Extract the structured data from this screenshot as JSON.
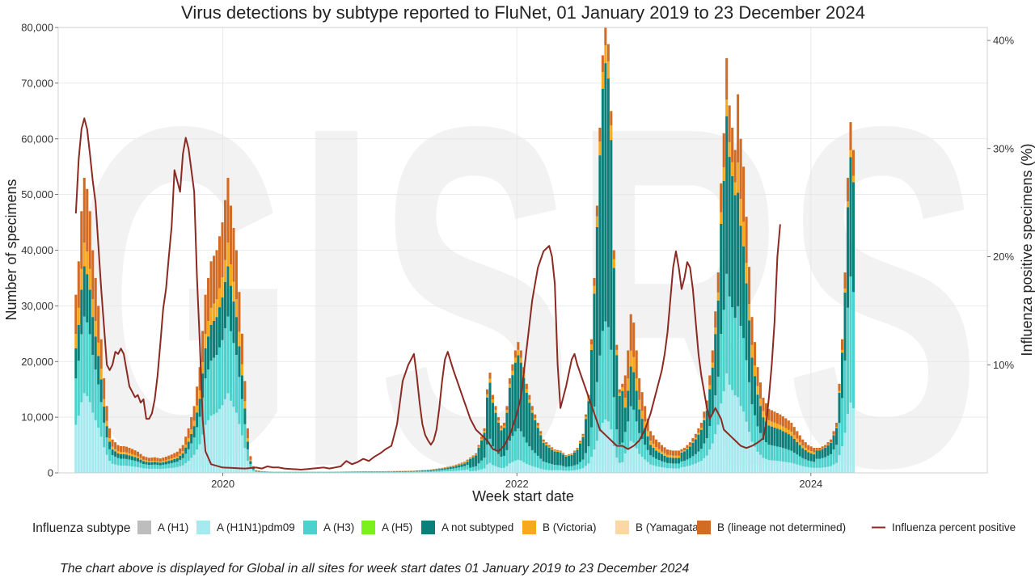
{
  "colors": {
    "A (H1)": "#bdbdbd",
    "A (H1N1)pdm09": "#a6eaf0",
    "A (H3)": "#4dd1cc",
    "A (H5)": "#7cf01c",
    "A not subtyped": "#0b7f7a",
    "B (Victoria)": "#f7a81b",
    "B (Yamagata)": "#f9d8a6",
    "B (lineage not determined)": "#d36b23",
    "Influenza percent positive": "#8b2a22",
    "watermark": "#f2f2f2",
    "grid": "#e4e4e4"
  },
  "chart_data": {
    "type": "bar",
    "stacked": true,
    "title": "Virus detections by subtype reported to FluNet, 01 January 2019 to 23 December 2024",
    "xlabel": "Week start date",
    "ylabel": "Number of specimens",
    "y2label": "Influenza positive specimens (%)",
    "watermark": "GISRS",
    "x_start": 2019.0,
    "x_step_weeks": 1,
    "xlim": [
      2018.88,
      2025.2
    ],
    "ylim": [
      0,
      80000
    ],
    "y2lim": [
      0,
      41.2
    ],
    "x_ticks": [
      {
        "value": 2020,
        "label": "2020"
      },
      {
        "value": 2022,
        "label": "2022"
      },
      {
        "value": 2024,
        "label": "2024"
      }
    ],
    "y_ticks": [
      {
        "value": 0,
        "label": "0"
      },
      {
        "value": 10000,
        "label": "10,000"
      },
      {
        "value": 20000,
        "label": "20,000"
      },
      {
        "value": 30000,
        "label": "30,000"
      },
      {
        "value": 40000,
        "label": "40,000"
      },
      {
        "value": 50000,
        "label": "50,000"
      },
      {
        "value": 60000,
        "label": "60,000"
      },
      {
        "value": 70000,
        "label": "70,000"
      },
      {
        "value": 80000,
        "label": "80,000"
      }
    ],
    "y2_ticks": [
      {
        "value": 10,
        "label": "10%"
      },
      {
        "value": 20,
        "label": "20%"
      },
      {
        "value": 30,
        "label": "30%"
      },
      {
        "value": 40,
        "label": "40%"
      }
    ],
    "legend_title": "Influenza subtype",
    "legend_position": "bottom",
    "legend": [
      {
        "name": "A (H1)",
        "kind": "box"
      },
      {
        "name": "A (H1N1)pdm09",
        "kind": "box"
      },
      {
        "name": "A (H3)",
        "kind": "box"
      },
      {
        "name": "A (H5)",
        "kind": "box"
      },
      {
        "name": "A not subtyped",
        "kind": "box"
      },
      {
        "name": "B (Victoria)",
        "kind": "box"
      },
      {
        "name": "B (Yamagata)",
        "kind": "box"
      },
      {
        "name": "B (lineage not determined)",
        "kind": "box"
      },
      {
        "name": "Influenza percent positive",
        "kind": "line"
      }
    ],
    "total_keypoints": [
      [
        0,
        32000
      ],
      [
        1,
        38000
      ],
      [
        2,
        47000
      ],
      [
        3,
        53000
      ],
      [
        4,
        51000
      ],
      [
        5,
        47000
      ],
      [
        6,
        40000
      ],
      [
        7,
        35000
      ],
      [
        8,
        30000
      ],
      [
        9,
        24000
      ],
      [
        10,
        17000
      ],
      [
        11,
        12000
      ],
      [
        12,
        8000
      ],
      [
        13,
        6000
      ],
      [
        14,
        5500
      ],
      [
        15,
        5000
      ],
      [
        16,
        4800
      ],
      [
        17,
        4800
      ],
      [
        18,
        4700
      ],
      [
        19,
        4500
      ],
      [
        20,
        4300
      ],
      [
        22,
        3800
      ],
      [
        24,
        3000
      ],
      [
        26,
        2700
      ],
      [
        28,
        2800
      ],
      [
        30,
        2600
      ],
      [
        32,
        2900
      ],
      [
        34,
        3300
      ],
      [
        36,
        3800
      ],
      [
        38,
        5000
      ],
      [
        40,
        8000
      ],
      [
        42,
        12000
      ],
      [
        44,
        19000
      ],
      [
        46,
        32000
      ],
      [
        48,
        38000
      ],
      [
        50,
        40000
      ],
      [
        52,
        45000
      ],
      [
        54,
        53000
      ],
      [
        55,
        48000
      ],
      [
        57,
        40000
      ],
      [
        59,
        25000
      ],
      [
        61,
        8000
      ],
      [
        62,
        3000
      ],
      [
        63,
        1200
      ],
      [
        64,
        500
      ],
      [
        66,
        300
      ],
      [
        70,
        200
      ],
      [
        80,
        200
      ],
      [
        90,
        200
      ],
      [
        100,
        250
      ],
      [
        110,
        300
      ],
      [
        120,
        400
      ],
      [
        126,
        600
      ],
      [
        130,
        900
      ],
      [
        134,
        1300
      ],
      [
        138,
        2000
      ],
      [
        142,
        3500
      ],
      [
        145,
        8000
      ],
      [
        146,
        15000
      ],
      [
        147,
        18000
      ],
      [
        148,
        14000
      ],
      [
        150,
        10000
      ],
      [
        151,
        8500
      ],
      [
        152,
        9000
      ],
      [
        153,
        12000
      ],
      [
        154,
        17000
      ],
      [
        156,
        22000
      ],
      [
        157,
        23500
      ],
      [
        158,
        22000
      ],
      [
        160,
        16000
      ],
      [
        162,
        12000
      ],
      [
        164,
        9000
      ],
      [
        166,
        6000
      ],
      [
        168,
        5000
      ],
      [
        170,
        4200
      ],
      [
        172,
        4000
      ],
      [
        174,
        3200
      ],
      [
        176,
        3500
      ],
      [
        178,
        4500
      ],
      [
        180,
        7000
      ],
      [
        182,
        14000
      ],
      [
        183,
        24000
      ],
      [
        184,
        35000
      ],
      [
        185,
        48000
      ],
      [
        186,
        62000
      ],
      [
        187,
        75000
      ],
      [
        188,
        80000
      ],
      [
        189,
        77000
      ],
      [
        190,
        65000
      ],
      [
        191,
        40000
      ],
      [
        192,
        23000
      ],
      [
        193,
        15000
      ],
      [
        194,
        16000
      ],
      [
        195,
        17500
      ],
      [
        196,
        22000
      ],
      [
        197,
        28500
      ],
      [
        198,
        27000
      ],
      [
        199,
        22000
      ],
      [
        200,
        17000
      ],
      [
        202,
        12000
      ],
      [
        204,
        7500
      ],
      [
        206,
        6000
      ],
      [
        208,
        5000
      ],
      [
        210,
        4200
      ],
      [
        212,
        4000
      ],
      [
        214,
        4000
      ],
      [
        216,
        4500
      ],
      [
        218,
        5500
      ],
      [
        220,
        7000
      ],
      [
        222,
        9000
      ],
      [
        224,
        13000
      ],
      [
        226,
        22000
      ],
      [
        228,
        36000
      ],
      [
        229,
        52000
      ],
      [
        230,
        61000
      ],
      [
        231,
        74500
      ],
      [
        232,
        66000
      ],
      [
        233,
        62000
      ],
      [
        234,
        58000
      ],
      [
        235,
        68000
      ],
      [
        236,
        60000
      ],
      [
        237,
        55000
      ],
      [
        238,
        46000
      ],
      [
        239,
        37000
      ],
      [
        240,
        28000
      ],
      [
        242,
        19000
      ],
      [
        244,
        13500
      ],
      [
        246,
        11500
      ],
      [
        248,
        11000
      ],
      [
        250,
        10500
      ],
      [
        252,
        9800
      ],
      [
        254,
        9000
      ],
      [
        256,
        7500
      ],
      [
        258,
        6000
      ],
      [
        260,
        5000
      ],
      [
        262,
        4500
      ],
      [
        264,
        4500
      ],
      [
        266,
        5000
      ],
      [
        268,
        6000
      ],
      [
        270,
        9000
      ],
      [
        271,
        16000
      ],
      [
        272,
        24000
      ],
      [
        273,
        36000
      ],
      [
        274,
        53000
      ],
      [
        275,
        63000
      ],
      [
        276,
        58000
      ]
    ],
    "percent_keypoints": [
      [
        0,
        24
      ],
      [
        1,
        29
      ],
      [
        2,
        31.8
      ],
      [
        3,
        32.8
      ],
      [
        4,
        31.8
      ],
      [
        5,
        29.5
      ],
      [
        6,
        27
      ],
      [
        7,
        25
      ],
      [
        8,
        21
      ],
      [
        9,
        17
      ],
      [
        10,
        13.5
      ],
      [
        11,
        10
      ],
      [
        12,
        9.5
      ],
      [
        13,
        10
      ],
      [
        14,
        11.2
      ],
      [
        15,
        11
      ],
      [
        16,
        11.5
      ],
      [
        17,
        11
      ],
      [
        18,
        9.5
      ],
      [
        19,
        8
      ],
      [
        20,
        7.5
      ],
      [
        21,
        7
      ],
      [
        22,
        7.2
      ],
      [
        23,
        6.5
      ],
      [
        24,
        6.8
      ],
      [
        25,
        5
      ],
      [
        26,
        5
      ],
      [
        27,
        5.5
      ],
      [
        28,
        6.8
      ],
      [
        29,
        9
      ],
      [
        30,
        12
      ],
      [
        31,
        15.2
      ],
      [
        32,
        17
      ],
      [
        33,
        20
      ],
      [
        34,
        22.8
      ],
      [
        35,
        28
      ],
      [
        36,
        27
      ],
      [
        37,
        26
      ],
      [
        38,
        29.5
      ],
      [
        39,
        31
      ],
      [
        40,
        30
      ],
      [
        41,
        28
      ],
      [
        42,
        26
      ],
      [
        43,
        18
      ],
      [
        44,
        12
      ],
      [
        45,
        5
      ],
      [
        46,
        2
      ],
      [
        48,
        0.8
      ],
      [
        52,
        0.5
      ],
      [
        60,
        0.4
      ],
      [
        64,
        0.5
      ],
      [
        66,
        0.4
      ],
      [
        68,
        0.6
      ],
      [
        70,
        0.5
      ],
      [
        72,
        0.5
      ],
      [
        74,
        0.4
      ],
      [
        80,
        0.3
      ],
      [
        84,
        0.4
      ],
      [
        88,
        0.5
      ],
      [
        90,
        0.4
      ],
      [
        94,
        0.6
      ],
      [
        96,
        1.1
      ],
      [
        98,
        0.8
      ],
      [
        100,
        1
      ],
      [
        102,
        1.3
      ],
      [
        104,
        1.1
      ],
      [
        106,
        1.5
      ],
      [
        108,
        1.8
      ],
      [
        110,
        2.2
      ],
      [
        112,
        2.5
      ],
      [
        114,
        4.5
      ],
      [
        116,
        8.5
      ],
      [
        118,
        10
      ],
      [
        120,
        11
      ],
      [
        121,
        9
      ],
      [
        122,
        6.5
      ],
      [
        123,
        4.5
      ],
      [
        124,
        3.5
      ],
      [
        125,
        3
      ],
      [
        126,
        2.6
      ],
      [
        127,
        3
      ],
      [
        128,
        4
      ],
      [
        129,
        6
      ],
      [
        130,
        8.5
      ],
      [
        131,
        10.5
      ],
      [
        132,
        11.2
      ],
      [
        134,
        9.5
      ],
      [
        136,
        8
      ],
      [
        138,
        6.5
      ],
      [
        140,
        5
      ],
      [
        142,
        4
      ],
      [
        144,
        3.5
      ],
      [
        146,
        3
      ],
      [
        148,
        2.2
      ],
      [
        150,
        2
      ],
      [
        152,
        2.5
      ],
      [
        154,
        3.5
      ],
      [
        156,
        5
      ],
      [
        158,
        7
      ],
      [
        160,
        11.5
      ],
      [
        162,
        16
      ],
      [
        164,
        19
      ],
      [
        166,
        20.5
      ],
      [
        168,
        21
      ],
      [
        169,
        20
      ],
      [
        170,
        17.5
      ],
      [
        171,
        10
      ],
      [
        172,
        6
      ],
      [
        174,
        8
      ],
      [
        176,
        10.5
      ],
      [
        177,
        11
      ],
      [
        178,
        10
      ],
      [
        180,
        8.5
      ],
      [
        182,
        7
      ],
      [
        184,
        5.5
      ],
      [
        186,
        4
      ],
      [
        188,
        3.5
      ],
      [
        190,
        3
      ],
      [
        192,
        2.5
      ],
      [
        194,
        2.5
      ],
      [
        196,
        2.2
      ],
      [
        198,
        2.5
      ],
      [
        200,
        3
      ],
      [
        202,
        4
      ],
      [
        204,
        5.5
      ],
      [
        206,
        7.5
      ],
      [
        208,
        9.5
      ],
      [
        209,
        11
      ],
      [
        210,
        13
      ],
      [
        211,
        16
      ],
      [
        212,
        19
      ],
      [
        213,
        20.5
      ],
      [
        214,
        19
      ],
      [
        215,
        17
      ],
      [
        216,
        18
      ],
      [
        217,
        19.5
      ],
      [
        218,
        19
      ],
      [
        219,
        17
      ],
      [
        220,
        14
      ],
      [
        221,
        11
      ],
      [
        222,
        9
      ],
      [
        223,
        7.5
      ],
      [
        224,
        6
      ],
      [
        225,
        5
      ],
      [
        226,
        5.5
      ],
      [
        227,
        6
      ],
      [
        228,
        5.5
      ],
      [
        229,
        5
      ],
      [
        230,
        4
      ],
      [
        232,
        3.5
      ],
      [
        234,
        3
      ],
      [
        236,
        2.5
      ],
      [
        238,
        2.3
      ],
      [
        240,
        2.5
      ],
      [
        242,
        2.8
      ],
      [
        244,
        3.2
      ],
      [
        245,
        4.5
      ],
      [
        246,
        7
      ],
      [
        247,
        10
      ],
      [
        248,
        14
      ],
      [
        249,
        20
      ],
      [
        250,
        23
      ]
    ],
    "composition": [
      {
        "until": 70,
        "pdm": 0.27,
        "h3": 0.26,
        "ans": 0.17,
        "vic": 0.08,
        "b": 0.22
      },
      {
        "until": 140,
        "pdm": 0.25,
        "h3": 0.35,
        "ans": 0.25,
        "vic": 0.06,
        "b": 0.09
      },
      {
        "until": 170,
        "pdm": 0.1,
        "h3": 0.24,
        "ans": 0.56,
        "vic": 0.04,
        "b": 0.06
      },
      {
        "until": 195,
        "pdm": 0.12,
        "h3": 0.22,
        "ans": 0.58,
        "vic": 0.04,
        "b": 0.04
      },
      {
        "until": 215,
        "pdm": 0.2,
        "h3": 0.22,
        "ans": 0.25,
        "vic": 0.1,
        "b": 0.23
      },
      {
        "until": 235,
        "pdm": 0.24,
        "h3": 0.24,
        "ans": 0.38,
        "vic": 0.04,
        "b": 0.1
      },
      {
        "until": 263,
        "pdm": 0.2,
        "h3": 0.24,
        "ans": 0.3,
        "vic": 0.08,
        "b": 0.18
      },
      {
        "until": 999,
        "pdm": 0.2,
        "h3": 0.36,
        "ans": 0.34,
        "vic": 0.02,
        "b": 0.08
      }
    ]
  },
  "footnote": "The chart above is displayed for Global in all sites for week start dates 01 January 2019 to 23 December 2024"
}
